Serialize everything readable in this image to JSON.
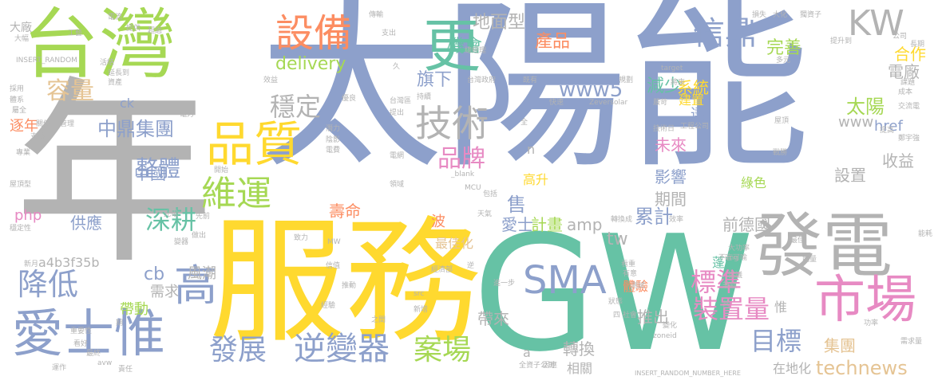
{
  "palette": {
    "blue": "#8da0cb",
    "green": "#66c2a5",
    "orange": "#fc8d62",
    "yellow": "#ffd92f",
    "lime": "#a6d854",
    "pink": "#e78ac3",
    "gray": "#b3b3b3",
    "tan": "#e5c494"
  },
  "words": [
    {
      "text": "太陽能",
      "color": "blue"
    },
    {
      "text": "GW",
      "color": "green"
    },
    {
      "text": "服務",
      "color": "yellow"
    },
    {
      "text": "年",
      "color": "gray"
    },
    {
      "text": "台灣",
      "color": "lime"
    },
    {
      "text": "發電",
      "color": "gray"
    },
    {
      "text": "市場",
      "color": "pink"
    },
    {
      "text": "愛士惟",
      "color": "blue"
    },
    {
      "text": "品質",
      "color": "yellow"
    },
    {
      "text": "更",
      "color": "green"
    },
    {
      "text": "設備",
      "color": "orange"
    },
    {
      "text": "技術",
      "color": "gray"
    },
    {
      "text": "KW",
      "color": "gray"
    },
    {
      "text": "信鼎",
      "color": "blue"
    },
    {
      "text": "逆變器",
      "color": "blue"
    },
    {
      "text": "維運",
      "color": "lime"
    },
    {
      "text": "高",
      "color": "blue"
    },
    {
      "text": "降低",
      "color": "blue"
    },
    {
      "text": "SMA",
      "color": "blue"
    },
    {
      "text": "發展",
      "color": "blue"
    },
    {
      "text": "案場",
      "color": "lime"
    },
    {
      "text": "標準",
      "color": "pink"
    },
    {
      "text": "裝置量",
      "color": "pink"
    },
    {
      "text": "目標",
      "color": "blue"
    },
    {
      "text": "穩定",
      "color": "gray"
    },
    {
      "text": "深耕",
      "color": "green"
    },
    {
      "text": "品牌",
      "color": "pink"
    },
    {
      "text": "容量",
      "color": "tan"
    },
    {
      "text": "整體",
      "color": "blue"
    },
    {
      "text": "中鼎集團",
      "color": "blue"
    },
    {
      "text": "www5",
      "color": "blue"
    },
    {
      "text": "機會",
      "color": "green"
    },
    {
      "text": "地面型",
      "color": "gray"
    },
    {
      "text": "產品",
      "color": "orange"
    },
    {
      "text": "減少",
      "color": "green"
    },
    {
      "text": "完善",
      "color": "lime"
    },
    {
      "text": "旗下",
      "color": "blue"
    },
    {
      "text": "delivery",
      "color": "lime"
    },
    {
      "text": "系統",
      "color": "yellow"
    },
    {
      "text": "合作",
      "color": "yellow"
    },
    {
      "text": "電廠",
      "color": "gray"
    },
    {
      "text": "太陽",
      "color": "lime"
    },
    {
      "text": "technews",
      "color": "tan"
    },
    {
      "text": "集團",
      "color": "tan"
    },
    {
      "text": "轉換",
      "color": "gray"
    },
    {
      "text": "推出",
      "color": "gray"
    },
    {
      "text": "帶來",
      "color": "gray"
    },
    {
      "text": "累計",
      "color": "blue"
    },
    {
      "text": "計畫",
      "color": "lime"
    },
    {
      "text": "愛士",
      "color": "blue"
    },
    {
      "text": "未來",
      "color": "pink"
    },
    {
      "text": "影響",
      "color": "blue"
    },
    {
      "text": "收益",
      "color": "gray"
    },
    {
      "text": "設置",
      "color": "gray"
    },
    {
      "text": "德國",
      "color": "gray"
    },
    {
      "text": "壽命",
      "color": "orange"
    },
    {
      "text": "供應",
      "color": "blue"
    },
    {
      "text": "需求",
      "color": "gray"
    },
    {
      "text": "帶動",
      "color": "lime"
    },
    {
      "text": "風潮",
      "color": "gray"
    },
    {
      "text": "中國",
      "color": "blue"
    },
    {
      "text": "期間",
      "color": "gray"
    },
    {
      "text": "售",
      "color": "blue"
    },
    {
      "text": "前",
      "color": "gray"
    },
    {
      "text": "tw",
      "color": "gray"
    },
    {
      "text": "amp",
      "color": "gray"
    },
    {
      "text": "cb",
      "color": "blue"
    },
    {
      "text": "php",
      "color": "pink"
    },
    {
      "text": "a4b3f35b",
      "color": "gray"
    },
    {
      "text": "www",
      "color": "gray"
    },
    {
      "text": "href",
      "color": "blue"
    },
    {
      "text": "逐年",
      "color": "orange"
    },
    {
      "text": "ck",
      "color": "blue"
    },
    {
      "text": "體驗",
      "color": "orange"
    },
    {
      "text": "蓬勃",
      "color": "green"
    },
    {
      "text": "高升",
      "color": "yellow"
    },
    {
      "text": "最佳化",
      "color": "tan"
    },
    {
      "text": "相關",
      "color": "gray"
    },
    {
      "text": "在地化",
      "color": "gray"
    },
    {
      "text": "綠色",
      "color": "lime"
    },
    {
      "text": "建置",
      "color": "yellow"
    },
    {
      "text": "惟",
      "color": "gray"
    },
    {
      "text": "達",
      "color": "blue"
    },
    {
      "text": "波",
      "color": "orange"
    },
    {
      "text": "大廠",
      "color": "gray"
    },
    {
      "text": "INSERT_RANDOM",
      "color": "gray"
    },
    {
      "text": "INSERT_RANDOM_NUMBER_HERE",
      "color": "gray"
    },
    {
      "text": "Zeversolar",
      "color": "gray"
    },
    {
      "text": "MCU",
      "color": "gray"
    },
    {
      "text": "MW",
      "color": "gray"
    },
    {
      "text": "_blank",
      "color": "gray"
    },
    {
      "text": "src",
      "color": "gray"
    },
    {
      "text": "img",
      "color": "gray"
    },
    {
      "text": "target",
      "color": "gray"
    },
    {
      "text": "zoneid",
      "color": "gray"
    },
    {
      "text": "avw",
      "color": "gray"
    },
    {
      "text": "工程公司",
      "color": "gray"
    },
    {
      "text": "大功率",
      "color": "gray"
    },
    {
      "text": "轉換成",
      "color": "gray"
    },
    {
      "text": "總經理",
      "color": "gray"
    },
    {
      "text": "台灣政府",
      "color": "gray"
    },
    {
      "text": "台灣區",
      "color": "gray"
    },
    {
      "text": "全資子公司",
      "color": "gray"
    },
    {
      "text": "屋頂型",
      "color": "gray"
    },
    {
      "text": "穩定性",
      "color": "gray"
    },
    {
      "text": "重要性",
      "color": "gray"
    },
    {
      "text": "需求量",
      "color": "gray"
    },
    {
      "text": "經濟部",
      "color": "gray"
    },
    {
      "text": "不言可喻",
      "color": "gray"
    },
    {
      "text": "技術日",
      "color": "gray"
    },
    {
      "text": "延長到",
      "color": "gray"
    },
    {
      "text": "提升到",
      "color": "gray"
    },
    {
      "text": "獨資子",
      "color": "gray"
    },
    {
      "text": "交流電",
      "color": "gray"
    },
    {
      "text": "鄭宇強",
      "color": "gray"
    },
    {
      "text": "新月",
      "color": "gray"
    },
    {
      "text": "光電",
      "color": "gray"
    },
    {
      "text": "電力",
      "color": "gray"
    },
    {
      "text": "電費",
      "color": "gray"
    },
    {
      "text": "屋頂",
      "color": "gray"
    },
    {
      "text": "戰勝",
      "color": "gray"
    },
    {
      "text": "電網",
      "color": "gray"
    },
    {
      "text": "領域",
      "color": "gray"
    },
    {
      "text": "效率",
      "color": "gray"
    },
    {
      "text": "看重",
      "color": "gray"
    },
    {
      "text": "看好",
      "color": "gray"
    },
    {
      "text": "責任",
      "color": "gray"
    },
    {
      "text": "運作",
      "color": "gray"
    },
    {
      "text": "最終",
      "color": "gray"
    },
    {
      "text": "進一步",
      "color": "gray"
    },
    {
      "text": "推動",
      "color": "gray"
    },
    {
      "text": "經驗",
      "color": "gray"
    },
    {
      "text": "新增",
      "color": "gray"
    },
    {
      "text": "之間",
      "color": "gray"
    },
    {
      "text": "狀態",
      "color": "gray"
    },
    {
      "text": "四 社會",
      "color": "gray"
    },
    {
      "text": "變化",
      "color": "gray"
    },
    {
      "text": "功率",
      "color": "gray"
    },
    {
      "text": "因應",
      "color": "gray"
    },
    {
      "text": "專業",
      "color": "gray"
    },
    {
      "text": "支持",
      "color": "gray"
    },
    {
      "text": "關係",
      "color": "gray"
    },
    {
      "text": "管理",
      "color": "gray"
    },
    {
      "text": "屬全",
      "color": "gray"
    },
    {
      "text": "採用",
      "color": "gray"
    },
    {
      "text": "體系",
      "color": "gray"
    },
    {
      "text": "活絡",
      "color": "gray"
    },
    {
      "text": "資產",
      "color": "gray"
    },
    {
      "text": "工藝",
      "color": "gray"
    },
    {
      "text": "提供",
      "color": "gray"
    },
    {
      "text": "超過",
      "color": "gray"
    },
    {
      "text": "電流",
      "color": "gray"
    },
    {
      "text": "大幅",
      "color": "gray"
    },
    {
      "text": "傳輸",
      "color": "gray"
    },
    {
      "text": "支出",
      "color": "gray"
    },
    {
      "text": "損失",
      "color": "gray"
    },
    {
      "text": "大化",
      "color": "gray"
    },
    {
      "text": "多元",
      "color": "gray"
    },
    {
      "text": "公司",
      "color": "gray"
    },
    {
      "text": "長期",
      "color": "gray"
    },
    {
      "text": "課題",
      "color": "gray"
    },
    {
      "text": "成本",
      "color": "gray"
    },
    {
      "text": "將來",
      "color": "gray"
    },
    {
      "text": "嚴苛",
      "color": "gray"
    },
    {
      "text": "規劃",
      "color": "gray"
    },
    {
      "text": "快速",
      "color": "gray"
    },
    {
      "text": "既有",
      "color": "gray"
    },
    {
      "text": "持續",
      "color": "gray"
    },
    {
      "text": "潛力",
      "color": "gray"
    },
    {
      "text": "陰影",
      "color": "gray"
    },
    {
      "text": "優良",
      "color": "gray"
    },
    {
      "text": "效益",
      "color": "gray"
    },
    {
      "text": "提出",
      "color": "gray"
    },
    {
      "text": "提高",
      "color": "gray"
    },
    {
      "text": "包括",
      "color": "gray"
    },
    {
      "text": "天氣",
      "color": "gray"
    },
    {
      "text": "致力",
      "color": "gray"
    },
    {
      "text": "先前",
      "color": "gray"
    },
    {
      "text": "做出",
      "color": "gray"
    },
    {
      "text": "變器",
      "color": "gray"
    },
    {
      "text": "信值",
      "color": "gray"
    },
    {
      "text": "有意",
      "color": "gray"
    },
    {
      "text": "共",
      "color": "gray"
    },
    {
      "text": "測試",
      "color": "gray"
    },
    {
      "text": "最佳",
      "color": "gray"
    },
    {
      "text": "能量",
      "color": "gray"
    },
    {
      "text": "能耗",
      "color": "gray"
    },
    {
      "text": "協議",
      "color": "gray"
    },
    {
      "text": "兼顧",
      "color": "gray"
    },
    {
      "text": "開始",
      "color": "gray"
    },
    {
      "text": "期",
      "color": "gray"
    },
    {
      "text": "久",
      "color": "gray"
    },
    {
      "text": "全",
      "color": "gray"
    },
    {
      "text": "a",
      "color": "gray"
    },
    {
      "text": "n",
      "color": "gray"
    },
    {
      "text": "逆",
      "color": "gray"
    }
  ]
}
